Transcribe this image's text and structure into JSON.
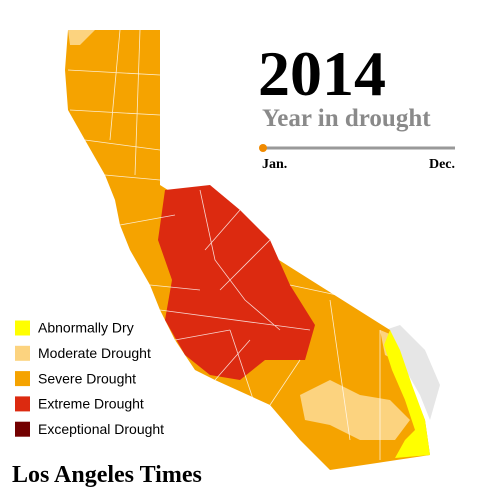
{
  "header": {
    "year": "2014",
    "subtitle": "Year in drought"
  },
  "timeline": {
    "start": "Jan.",
    "end": "Dec."
  },
  "legend": [
    {
      "label": "Abnormally Dry",
      "color": "#ffff00"
    },
    {
      "label": "Moderate Drought",
      "color": "#fcd37f"
    },
    {
      "label": "Severe Drought",
      "color": "#f5a300"
    },
    {
      "label": "Extreme Drought",
      "color": "#dc2a10"
    },
    {
      "label": "Exceptional Drought",
      "color": "#730000"
    }
  ],
  "footer": "Los Angeles Times"
}
